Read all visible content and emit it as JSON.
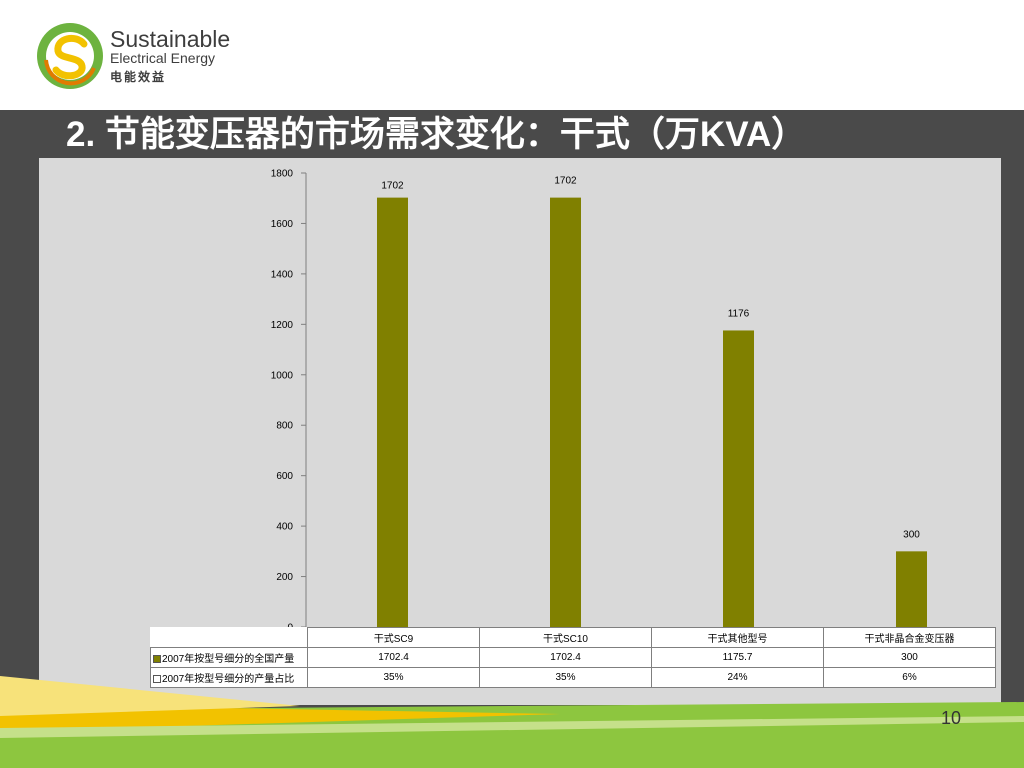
{
  "header": {
    "brand_line1": "Sustainable",
    "brand_line2": "Electrical  Energy",
    "brand_line3": "电能效益"
  },
  "slide": {
    "title": "2.  节能变压器的市场需求变化：干式（万KVA）",
    "page_number": "10"
  },
  "colors": {
    "bar": "#808000",
    "panel": "#d9d9d9",
    "band": "#4a4a4a",
    "accent_green": "#6db33f",
    "accent_yellow": "#f2c200"
  },
  "chart_data": {
    "type": "bar",
    "categories": [
      "干式SC9",
      "干式SC10",
      "干式其他型号",
      "干式非晶合金变压器"
    ],
    "series": [
      {
        "name": "2007年按型号细分的全国产量",
        "values": [
          1702.4,
          1702.4,
          1175.7,
          300
        ],
        "labels": [
          "1702",
          "1702",
          "1176",
          "300"
        ]
      },
      {
        "name": "2007年按型号细分的产量占比",
        "values": [
          "35%",
          "35%",
          "24%",
          "6%"
        ]
      }
    ],
    "table_values": [
      [
        "1702.4",
        "1702.4",
        "1175.7",
        "300"
      ],
      [
        "35%",
        "35%",
        "24%",
        "6%"
      ]
    ],
    "ylim": [
      0,
      1800
    ],
    "yticks": [
      "0",
      "200",
      "400",
      "600",
      "800",
      "1000",
      "1200",
      "1400",
      "1600",
      "1800"
    ],
    "grid": false,
    "legend": "data-table"
  }
}
